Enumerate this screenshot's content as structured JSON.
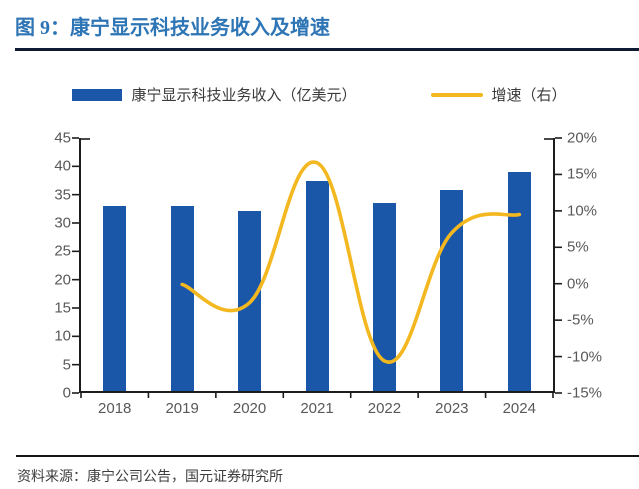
{
  "figure": {
    "title": "图 9：康宁显示科技业务收入及增速",
    "source": "资料来源：康宁公司公告，国元证券研究所"
  },
  "legend": {
    "bar_label": "康宁显示科技业务收入（亿美元）",
    "line_label": "增速（右）"
  },
  "colors": {
    "bar": "#1B57A8",
    "line": "#F3B71F",
    "title_text": "#2E75B5",
    "title_rule": "#0E1B33",
    "axis_text": "#595959",
    "axis_line": "#1d1d1d"
  },
  "chart_data": {
    "type": "bar",
    "subtype": "bar+line combo",
    "title": "康宁显示科技业务收入及增速",
    "categories": [
      "2018",
      "2019",
      "2020",
      "2021",
      "2022",
      "2023",
      "2024"
    ],
    "series": [
      {
        "name": "康宁显示科技业务收入（亿美元）",
        "type": "bar",
        "axis": "left",
        "values": [
          32.6,
          32.6,
          31.7,
          37.0,
          33.1,
          35.4,
          38.7
        ]
      },
      {
        "name": "增速（右）",
        "type": "line",
        "axis": "right",
        "values": [
          null,
          -0.1,
          -2.6,
          16.6,
          -10.6,
          7.0,
          9.5
        ]
      }
    ],
    "left_axis": {
      "min": 0,
      "max": 45,
      "step": 5,
      "tick_labels": [
        "45",
        "40",
        "35",
        "30",
        "25",
        "20",
        "15",
        "10",
        "5",
        "0"
      ]
    },
    "right_axis": {
      "min": -15,
      "max": 20,
      "step": 5,
      "format": "percent",
      "tick_labels": [
        "20%",
        "15%",
        "10%",
        "5%",
        "0%",
        "-5%",
        "-10%",
        "-15%"
      ]
    },
    "grid": false,
    "legend_position": "top",
    "line_smoothed": true
  }
}
